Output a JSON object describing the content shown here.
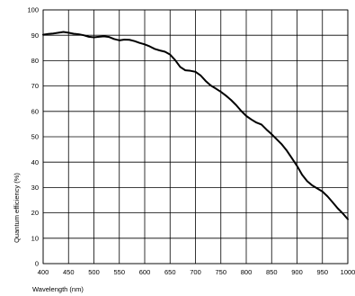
{
  "chart_data": {
    "type": "line",
    "xlabel": "Wavelength (nm)",
    "ylabel": "Quantum efficiency (%)",
    "xlim": [
      400,
      1000
    ],
    "ylim": [
      0,
      100
    ],
    "xticks": [
      400,
      450,
      500,
      550,
      600,
      650,
      700,
      750,
      800,
      850,
      900,
      950,
      1000
    ],
    "yticks": [
      0,
      10,
      20,
      30,
      40,
      50,
      60,
      70,
      80,
      90,
      100
    ],
    "grid": true,
    "line_color": "#000000",
    "series": [
      {
        "x": [
          400,
          410,
          420,
          430,
          440,
          450,
          460,
          470,
          480,
          490,
          500,
          510,
          520,
          530,
          540,
          550,
          560,
          570,
          580,
          590,
          600,
          610,
          620,
          630,
          640,
          650,
          660,
          670,
          680,
          690,
          700,
          710,
          720,
          730,
          740,
          750,
          760,
          770,
          780,
          790,
          800,
          810,
          820,
          830,
          840,
          850,
          860,
          870,
          880,
          890,
          900,
          910,
          920,
          930,
          940,
          950,
          960,
          970,
          980,
          990,
          1000
        ],
        "y": [
          90.2,
          90.5,
          90.7,
          91.0,
          91.3,
          91.0,
          90.6,
          90.4,
          90.0,
          89.4,
          89.2,
          89.4,
          89.6,
          89.3,
          88.5,
          88.0,
          88.3,
          88.2,
          87.7,
          87.0,
          86.4,
          85.6,
          84.6,
          84.0,
          83.5,
          82.4,
          80.2,
          77.5,
          76.2,
          76.0,
          75.6,
          74.2,
          72.0,
          70.2,
          69.0,
          67.7,
          66.2,
          64.5,
          62.5,
          60.2,
          58.2,
          56.8,
          55.6,
          54.8,
          52.8,
          51.0,
          49.0,
          47.0,
          44.5,
          41.5,
          38.5,
          35.0,
          32.5,
          30.8,
          29.6,
          28.4,
          26.5,
          24.2,
          21.8,
          19.8,
          17.5
        ]
      }
    ]
  }
}
